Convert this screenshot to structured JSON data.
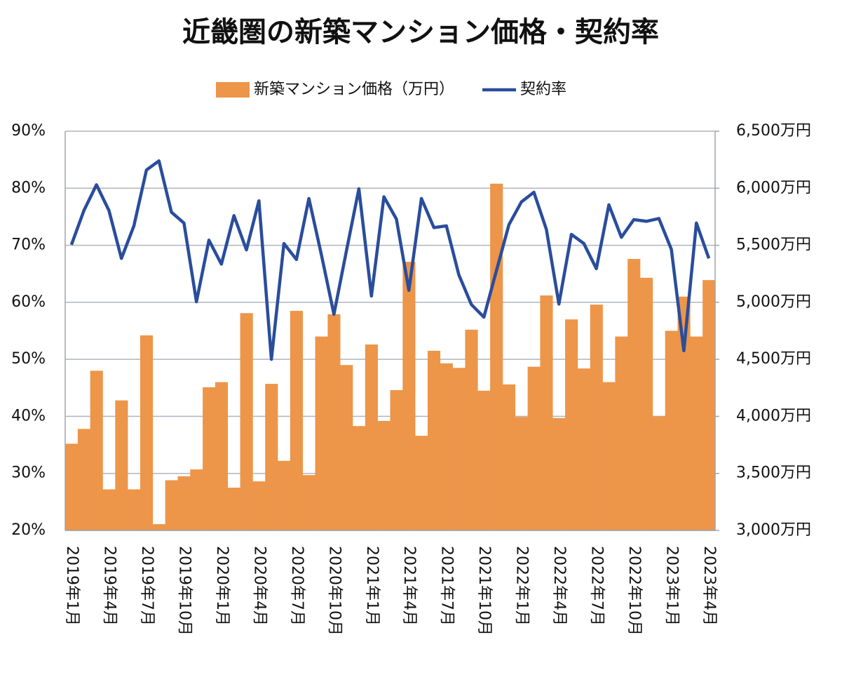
{
  "chart_data": {
    "type": "combo",
    "title": "近畿圏の新築マンション価格・契約率",
    "categories": [
      "2019年1月",
      null,
      null,
      "2019年4月",
      null,
      null,
      "2019年7月",
      null,
      null,
      "2019年10月",
      null,
      null,
      "2020年1月",
      null,
      null,
      "2020年4月",
      null,
      null,
      "2020年7月",
      null,
      null,
      "2020年10月",
      null,
      null,
      "2021年1月",
      null,
      null,
      "2021年4月",
      null,
      null,
      "2021年7月",
      null,
      null,
      "2021年10月",
      null,
      null,
      "2022年1月",
      null,
      null,
      "2022年4月",
      null,
      null,
      "2022年7月",
      null,
      null,
      "2022年10月",
      null,
      null,
      "2023年1月",
      null,
      null,
      "2023年4月"
    ],
    "series": [
      {
        "name": "新築マンション価格（万円）",
        "type": "bar",
        "axis": "y2",
        "color": "#ED9549",
        "values": [
          3760,
          3890,
          4400,
          3360,
          4140,
          3360,
          4710,
          3055,
          3440,
          3475,
          3535,
          4255,
          4300,
          3375,
          4905,
          3430,
          4285,
          3610,
          4925,
          3485,
          4700,
          4895,
          4450,
          3915,
          4630,
          3960,
          4230,
          5355,
          3830,
          4575,
          4465,
          4425,
          4760,
          4225,
          6040,
          4280,
          3995,
          4435,
          5060,
          3985,
          4850,
          4420,
          4980,
          4300,
          4700,
          5380,
          5215,
          4000,
          4750,
          5050,
          4700,
          5195
        ]
      },
      {
        "name": "契約率",
        "type": "line",
        "color": "#2A4D9C",
        "values": [
          70.1,
          76.1,
          80.6,
          76.1,
          67.7,
          73.4,
          83.2,
          84.8,
          75.8,
          73.9,
          60.1,
          70.9,
          66.7,
          75.2,
          69.2,
          77.8,
          50.0,
          70.3,
          67.5,
          78.2,
          68.3,
          57.9,
          69.0,
          79.9,
          61.1,
          78.5,
          74.6,
          62.1,
          78.2,
          73.1,
          73.4,
          64.8,
          59.6,
          57.4,
          65.5,
          73.6,
          77.6,
          79.3,
          72.8,
          59.7,
          71.9,
          70.3,
          65.9,
          77.1,
          71.4,
          74.5,
          74.2,
          74.7,
          69.3,
          51.5,
          73.9,
          67.7
        ]
      }
    ],
    "ylim": [
      20,
      90
    ],
    "yticks": [
      {
        "value": 20,
        "label": "20%"
      },
      {
        "value": 30,
        "label": "30%"
      },
      {
        "value": 40,
        "label": "40%"
      },
      {
        "value": 50,
        "label": "50%"
      },
      {
        "value": 60,
        "label": "60%"
      },
      {
        "value": 70,
        "label": "70%"
      },
      {
        "value": 80,
        "label": "80%"
      },
      {
        "value": 90,
        "label": "90%"
      }
    ],
    "y2lim": [
      3000,
      6500
    ],
    "y2ticks": [
      {
        "value": 3000,
        "label": "3,000万円"
      },
      {
        "value": 3500,
        "label": "3,500万円"
      },
      {
        "value": 4000,
        "label": "4,000万円"
      },
      {
        "value": 4500,
        "label": "4,500万円"
      },
      {
        "value": 5000,
        "label": "5,000万円"
      },
      {
        "value": 5500,
        "label": "5,500万円"
      },
      {
        "value": 6000,
        "label": "6,000万円"
      },
      {
        "value": 6500,
        "label": "6,500万円"
      }
    ],
    "grid": true,
    "legend": "top"
  }
}
